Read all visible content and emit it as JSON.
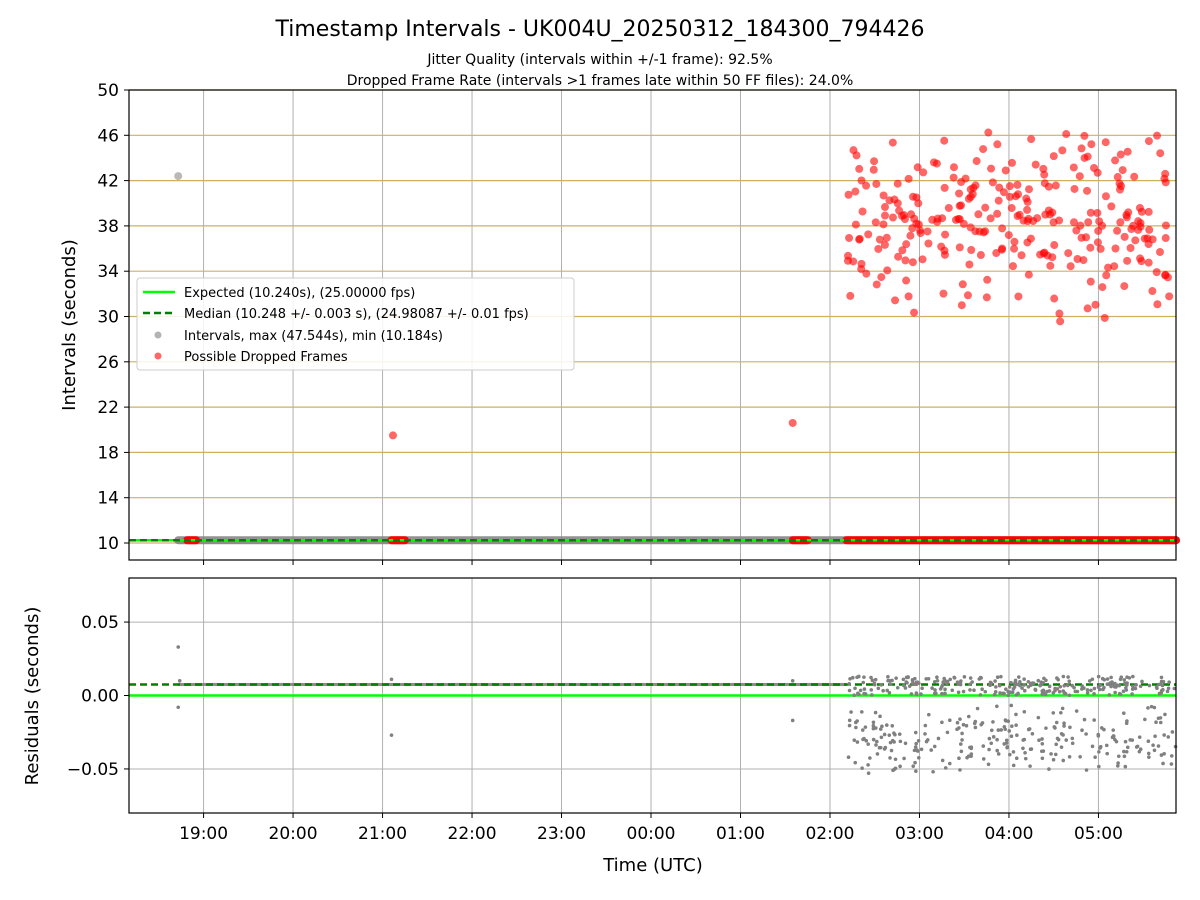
{
  "figure": {
    "title": "Timestamp Intervals - UK004U_20250312_184300_794426",
    "subtitle_1": "Jitter Quality (intervals within +/-1 frame): 92.5%",
    "subtitle_2": "Dropped Frame Rate (intervals >1 frames late within 50 FF files): 24.0%"
  },
  "colors": {
    "expected": "#00ff00",
    "median": "#007f00",
    "intervals": "#808080",
    "dropped": "#ff0000",
    "hgrid_top": "#ccb260",
    "grid": "#b0b0b0"
  },
  "chart_data": [
    {
      "type": "scatter",
      "ylabel": "Intervals (seconds)",
      "xlabel": "",
      "ylim": [
        8.5,
        50
      ],
      "yticks": [
        10,
        14,
        18,
        22,
        26,
        30,
        34,
        38,
        42,
        46,
        50
      ],
      "xlim": [
        "18:10",
        "05:52"
      ],
      "xticks": [
        "19:00",
        "20:00",
        "21:00",
        "22:00",
        "23:00",
        "00:00",
        "01:00",
        "02:00",
        "03:00",
        "04:00",
        "05:00"
      ],
      "grid": "on",
      "legend_position": "center-left",
      "expected_line": {
        "y": 10.24,
        "label": "Expected (10.240s), (25.00000 fps)"
      },
      "median_line": {
        "y": 10.248,
        "label": "Median (10.248 +/- 0.003 s), (24.98087 +/- 0.01 fps)"
      },
      "intervals": {
        "label": "Intervals, max (47.544s), min (10.184s)",
        "baseline": {
          "x_start": "18:43",
          "x_end": "05:52",
          "y": 10.248
        },
        "points": [
          {
            "x": "18:43",
            "y": 42.4
          }
        ]
      },
      "dropped_frames": {
        "label": "Possible Dropped Frames",
        "outliers": [
          {
            "x": "21:07",
            "y": 19.5
          },
          {
            "x": "01:35",
            "y": 20.6
          }
        ],
        "baseline_segments": [
          {
            "x_start": "18:49",
            "x_end": "18:55",
            "y": 10.248
          },
          {
            "x_start": "21:06",
            "x_end": "21:15",
            "y": 10.248
          },
          {
            "x_start": "01:35",
            "x_end": "01:45",
            "y": 10.248
          },
          {
            "x_start": "02:11",
            "x_end": "05:52",
            "y": 10.248
          }
        ],
        "cloud": {
          "x_start": "02:12",
          "x_end": "05:52",
          "y_min": 29.0,
          "y_max": 47.5,
          "count": 280
        }
      }
    },
    {
      "type": "scatter",
      "ylabel": "Residuals (seconds)",
      "xlabel": "Time (UTC)",
      "ylim": [
        -0.08,
        0.08
      ],
      "yticks": [
        0.05,
        0.0,
        -0.05
      ],
      "ytick_labels": [
        "0.05",
        "0.00",
        "−0.05"
      ],
      "xlim": [
        "18:10",
        "05:52"
      ],
      "xticks": [
        "19:00",
        "20:00",
        "21:00",
        "22:00",
        "23:00",
        "00:00",
        "01:00",
        "02:00",
        "03:00",
        "04:00",
        "05:00"
      ],
      "grid": "on",
      "zero_line": 0.0,
      "median_residual": 0.0075,
      "points": [
        {
          "x": "18:43",
          "y": 0.033
        },
        {
          "x": "18:43",
          "y": -0.008
        },
        {
          "x": "18:44",
          "y": 0.01
        },
        {
          "x": "21:06",
          "y": -0.027
        },
        {
          "x": "21:06",
          "y": 0.011
        },
        {
          "x": "01:35",
          "y": -0.017
        },
        {
          "x": "01:35",
          "y": 0.01
        }
      ],
      "baseline": {
        "x_start": "18:43",
        "x_end": "02:11",
        "y": 0.0075
      },
      "cloud_upper": {
        "x_start": "02:12",
        "x_end": "05:52",
        "y_min": 0.0,
        "y_max": 0.013,
        "count": 260
      },
      "cloud_lower": {
        "x_start": "02:12",
        "x_end": "05:52",
        "y_min": -0.055,
        "y_max": -0.003,
        "count": 260
      }
    }
  ]
}
